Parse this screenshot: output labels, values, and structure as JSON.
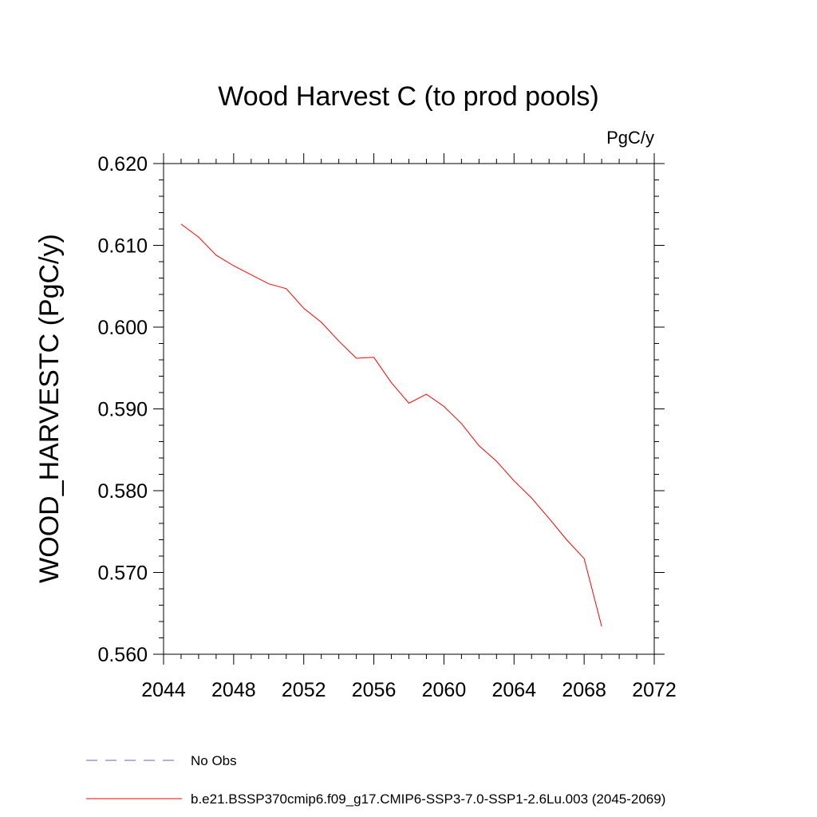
{
  "chart_data": {
    "type": "line",
    "title": "Wood Harvest C (to prod pools)",
    "units": "PgC/y",
    "xlabel": "",
    "ylabel": "WOOD_HARVESTC  (PgC/y)",
    "xlim": [
      2044,
      2072
    ],
    "ylim": [
      0.56,
      0.62
    ],
    "x_ticks": [
      2044,
      2048,
      2052,
      2056,
      2060,
      2064,
      2068,
      2072
    ],
    "x_tick_labels": [
      "2044",
      "2048",
      "2052",
      "2056",
      "2060",
      "2064",
      "2068",
      "2072"
    ],
    "y_ticks": [
      0.56,
      0.57,
      0.58,
      0.59,
      0.6,
      0.61,
      0.62
    ],
    "y_tick_labels": [
      "0.560",
      "0.570",
      "0.580",
      "0.590",
      "0.600",
      "0.610",
      "0.620"
    ],
    "grid": false,
    "legend_position": "bottom",
    "series": [
      {
        "name": "b.e21.BSSP370cmip6.f09_g17.CMIP6-SSP3-7.0-SSP1-2.6Lu.003 (2045-2069)",
        "color": "#ff0000",
        "style": "solid",
        "x": [
          2045,
          2046,
          2047,
          2048,
          2049,
          2050,
          2051,
          2052,
          2053,
          2054,
          2055,
          2056,
          2057,
          2058,
          2059,
          2060,
          2061,
          2062,
          2063,
          2064,
          2065,
          2066,
          2067,
          2068,
          2069
        ],
        "y": [
          0.6126,
          0.611,
          0.6088,
          0.6075,
          0.6064,
          0.6053,
          0.6047,
          0.6023,
          0.6006,
          0.5983,
          0.5962,
          0.5963,
          0.5932,
          0.5907,
          0.5918,
          0.5903,
          0.5882,
          0.5855,
          0.5836,
          0.5812,
          0.5791,
          0.5766,
          0.574,
          0.5717,
          0.5634
        ]
      },
      {
        "name": "No Obs",
        "color": "#6f5fb0",
        "style": "dashed",
        "x": [],
        "y": []
      }
    ]
  }
}
